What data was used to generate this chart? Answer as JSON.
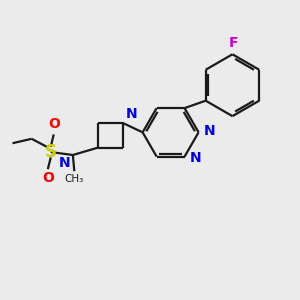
{
  "bg_color": "#ebebeb",
  "bond_color": "#1a1a1a",
  "n_color": "#0000ee",
  "s_color": "#cccc00",
  "o_color": "#ff0000",
  "f_color": "#cc00cc",
  "figsize": [
    3.0,
    3.0
  ],
  "dpi": 100,
  "xlim": [
    0,
    10
  ],
  "ylim": [
    0,
    10
  ]
}
